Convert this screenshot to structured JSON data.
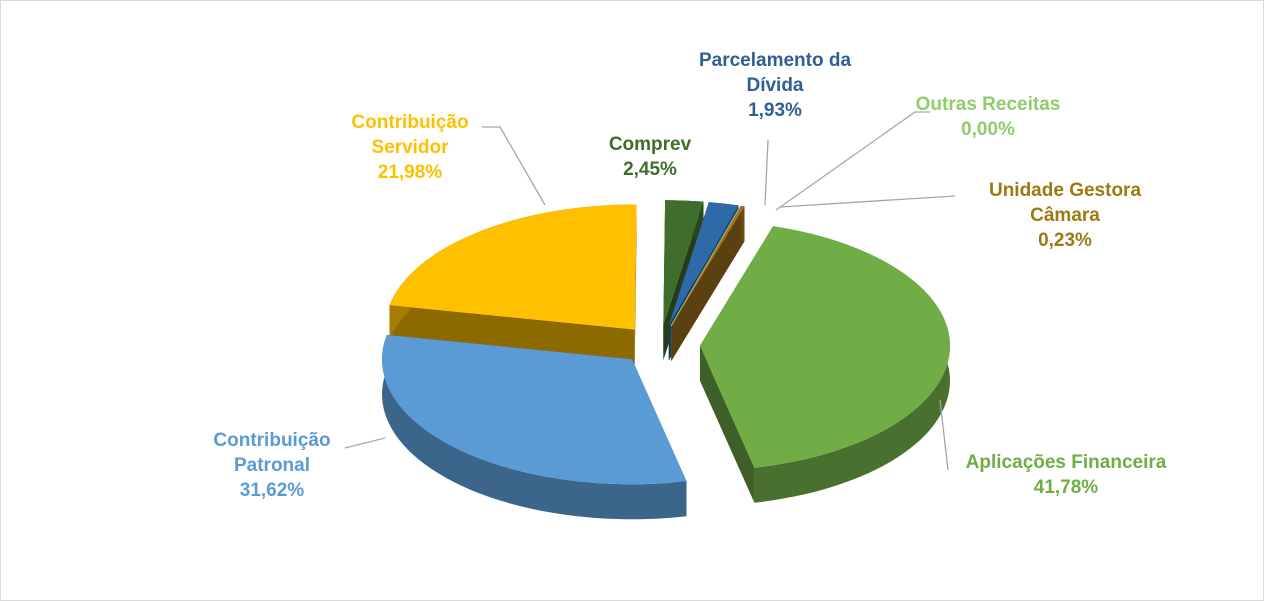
{
  "chart_data": {
    "type": "pie",
    "categories": [
      "Aplicações Financeira",
      "Contribuição Patronal",
      "Contribuição Servidor",
      "Comprev",
      "Parcelamento da Dívida",
      "Outras Receitas",
      "Unidade Gestora Câmara"
    ],
    "values": [
      41.78,
      31.62,
      21.98,
      2.45,
      1.93,
      0.0,
      0.23
    ],
    "value_labels": [
      "41,78%",
      "31,62%",
      "21,98%",
      "2,45%",
      "1,93%",
      "0,00%",
      "0,23%"
    ],
    "colors": [
      "#70ad47",
      "#5b9bd5",
      "#ffc000",
      "#3f6e2b",
      "#2e6aa8",
      "#a9d18e",
      "#a5761f"
    ],
    "label_colors": [
      "#70ad47",
      "#5b9bd5",
      "#ffc000",
      "#3f6e2b",
      "#2f5f97",
      "#8fcc6b",
      "#9c7a0f"
    ]
  }
}
